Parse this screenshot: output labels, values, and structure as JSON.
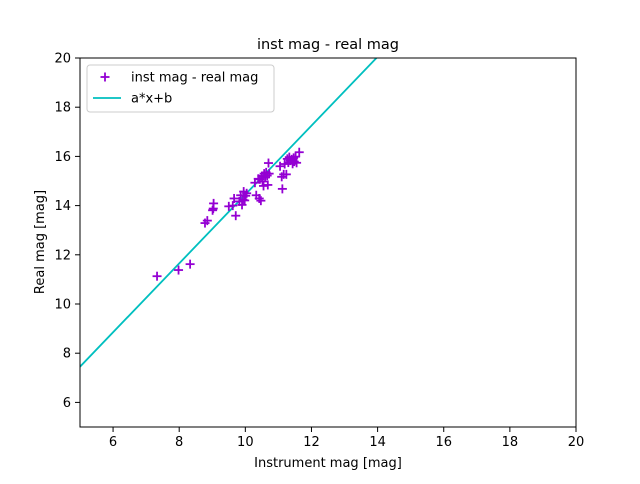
{
  "chart_data": {
    "type": "scatter",
    "title": "inst mag - real mag",
    "xlabel": "Instrument mag [mag]",
    "ylabel": "Real mag [mag]",
    "xlim": [
      5,
      20
    ],
    "ylim": [
      5,
      20
    ],
    "xticks": [
      6,
      8,
      10,
      12,
      14,
      16,
      18,
      20
    ],
    "yticks": [
      6,
      8,
      10,
      12,
      14,
      16,
      18,
      20
    ],
    "grid": false,
    "legend_position": "upper-left",
    "series": [
      {
        "name": "inst mag - real mag",
        "kind": "scatter",
        "marker": "plus",
        "color": "#9400d3",
        "points": [
          [
            7.33,
            11.13
          ],
          [
            7.98,
            11.38
          ],
          [
            8.33,
            11.62
          ],
          [
            8.78,
            13.29
          ],
          [
            8.85,
            13.39
          ],
          [
            9.01,
            13.81
          ],
          [
            9.03,
            13.88
          ],
          [
            9.04,
            14.09
          ],
          [
            9.5,
            13.97
          ],
          [
            9.62,
            14.0
          ],
          [
            9.66,
            14.29
          ],
          [
            9.71,
            13.59
          ],
          [
            9.82,
            14.17
          ],
          [
            9.86,
            14.42
          ],
          [
            9.9,
            14.03
          ],
          [
            9.93,
            14.24
          ],
          [
            9.95,
            14.57
          ],
          [
            9.98,
            14.21
          ],
          [
            10.01,
            14.4
          ],
          [
            10.04,
            14.5
          ],
          [
            10.29,
            14.93
          ],
          [
            10.33,
            14.42
          ],
          [
            10.39,
            15.09
          ],
          [
            10.42,
            14.29
          ],
          [
            10.44,
            15.07
          ],
          [
            10.47,
            14.2
          ],
          [
            10.5,
            15.2
          ],
          [
            10.52,
            14.98
          ],
          [
            10.55,
            14.8
          ],
          [
            10.57,
            15.3
          ],
          [
            10.6,
            15.14
          ],
          [
            10.63,
            15.35
          ],
          [
            10.66,
            15.22
          ],
          [
            10.68,
            14.84
          ],
          [
            10.7,
            15.73
          ],
          [
            10.72,
            15.3
          ],
          [
            11.05,
            15.6
          ],
          [
            11.1,
            15.17
          ],
          [
            11.12,
            14.68
          ],
          [
            11.16,
            15.27
          ],
          [
            11.19,
            15.69
          ],
          [
            11.24,
            15.27
          ],
          [
            11.27,
            15.9
          ],
          [
            11.3,
            15.75
          ],
          [
            11.33,
            15.97
          ],
          [
            11.36,
            15.83
          ],
          [
            11.4,
            15.88
          ],
          [
            11.43,
            15.7
          ],
          [
            11.46,
            15.94
          ],
          [
            11.48,
            15.79
          ],
          [
            11.52,
            15.99
          ],
          [
            11.55,
            15.74
          ],
          [
            11.63,
            16.17
          ]
        ]
      },
      {
        "name": "a*x+b",
        "kind": "line",
        "color": "#00bfbf",
        "slope": 1.4,
        "intercept": 0.45
      }
    ]
  }
}
